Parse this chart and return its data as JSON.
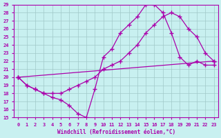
{
  "xlabel": "Windchill (Refroidissement éolien,°C)",
  "bg_color": "#c8f0f0",
  "grid_color": "#a0c8c8",
  "line_color": "#aa00aa",
  "xlim": [
    -0.5,
    23.5
  ],
  "ylim": [
    15,
    29
  ],
  "xticks": [
    0,
    1,
    2,
    3,
    4,
    5,
    6,
    7,
    8,
    9,
    10,
    11,
    12,
    13,
    14,
    15,
    16,
    17,
    18,
    19,
    20,
    21,
    22,
    23
  ],
  "yticks": [
    15,
    16,
    17,
    18,
    19,
    20,
    21,
    22,
    23,
    24,
    25,
    26,
    27,
    28,
    29
  ],
  "line1_x": [
    0,
    1,
    2,
    3,
    4,
    5,
    6,
    7,
    8,
    9,
    10,
    11,
    12,
    13,
    14,
    15,
    16,
    17,
    18,
    19,
    20,
    21,
    22,
    23
  ],
  "line1_y": [
    20.0,
    19.0,
    18.5,
    18.0,
    17.5,
    17.2,
    16.5,
    15.5,
    15.0,
    18.5,
    22.5,
    23.5,
    25.5,
    26.5,
    27.5,
    29.0,
    29.0,
    28.0,
    25.5,
    22.5,
    21.5,
    22.0,
    21.5,
    21.5
  ],
  "line2_x": [
    0,
    1,
    2,
    3,
    4,
    5,
    6,
    7,
    8,
    9,
    10,
    11,
    12,
    13,
    14,
    15,
    16,
    17,
    18,
    19,
    20,
    21,
    22,
    23
  ],
  "line2_y": [
    20.0,
    19.0,
    18.5,
    18.0,
    18.0,
    18.0,
    18.5,
    19.0,
    19.5,
    20.0,
    21.0,
    21.5,
    22.0,
    23.0,
    24.0,
    25.5,
    26.5,
    27.5,
    28.0,
    27.5,
    26.0,
    25.0,
    23.0,
    22.0
  ],
  "line3_x": [
    0,
    23
  ],
  "line3_y": [
    20.0,
    22.0
  ]
}
